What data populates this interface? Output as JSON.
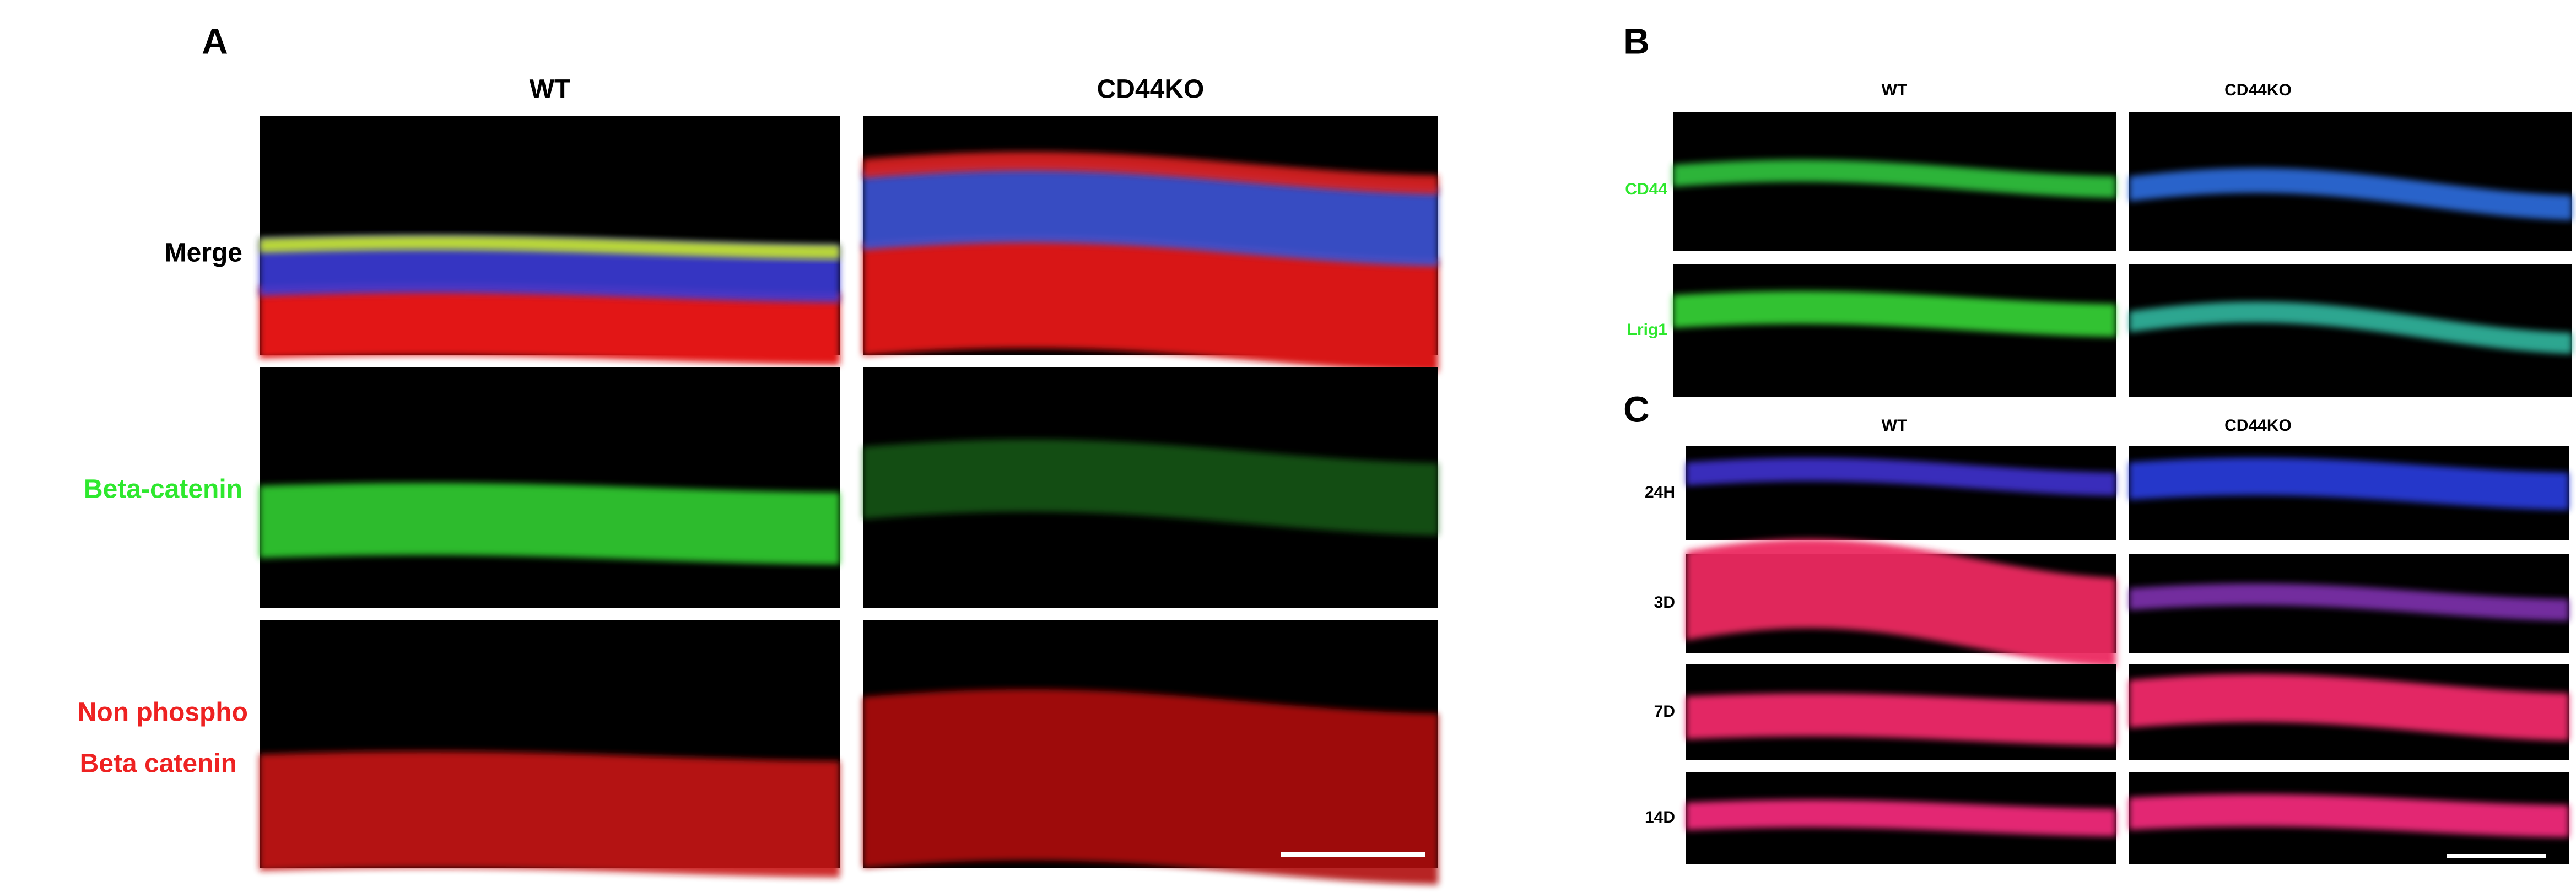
{
  "panels": {
    "A": {
      "label": "A",
      "columns": [
        "WT",
        "CD44KO"
      ],
      "rows": [
        "Merge",
        "Beta-catenin",
        [
          "Non phospho",
          "Beta catenin"
        ]
      ]
    },
    "B": {
      "label": "B",
      "columns": [
        "WT",
        "CD44KO"
      ],
      "rows": [
        "CD44",
        "Lrig1"
      ]
    },
    "C": {
      "label": "C",
      "columns": [
        "WT",
        "CD44KO"
      ],
      "rows": [
        "24H",
        "3D",
        "7D",
        "14D"
      ]
    }
  }
}
